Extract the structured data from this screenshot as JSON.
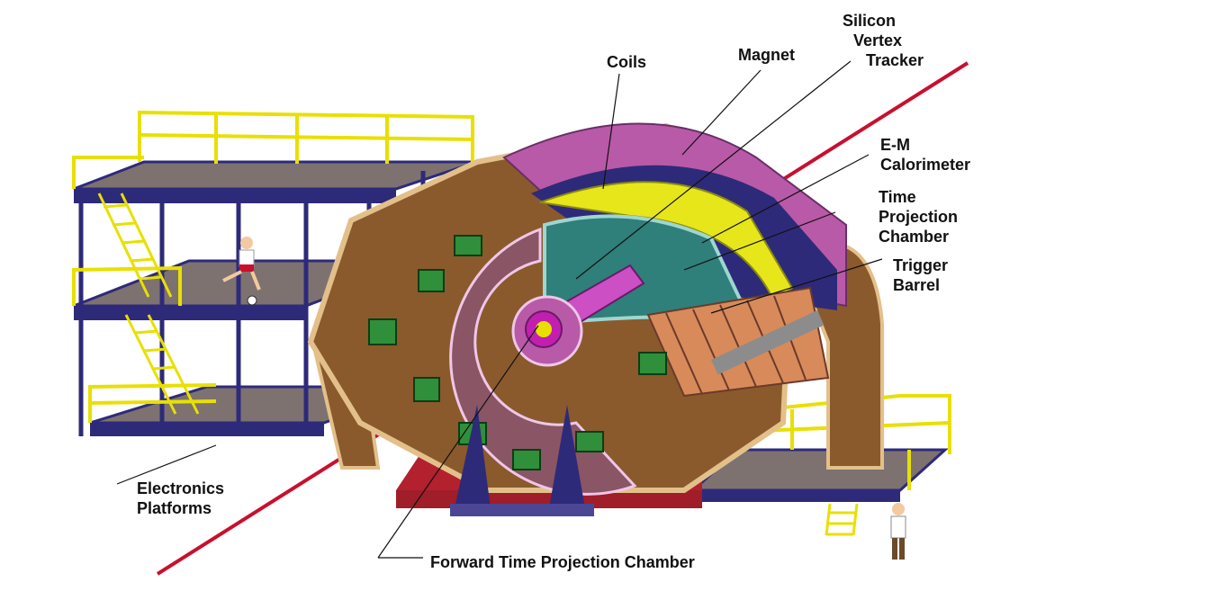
{
  "colors": {
    "beam": "#c8102e",
    "platform_rail": "#e8e000",
    "platform_post": "#2e2a7a",
    "platform_floor": "#7d7270",
    "yoke": "#8a5a2c",
    "yoke_edge": "#e3c08a",
    "calorimeter": "#b85aa8",
    "magnet_ring": "#e6e61a",
    "tpc": "#2f7f7a",
    "end_cap": "#8a5564",
    "support_base": "#a01d2a"
  },
  "labels": {
    "silicon_vertex_tracker": [
      "Silicon",
      "Vertex",
      "Tracker"
    ],
    "magnet": "Magnet",
    "coils": "Coils",
    "em_calorimeter": [
      "E-M",
      "Calorimeter"
    ],
    "time_projection_chamber": [
      "Time",
      "Projection",
      "Chamber"
    ],
    "trigger_barrel": [
      "Trigger",
      "Barrel"
    ],
    "electronics_platforms": [
      "Electronics",
      "Platforms"
    ],
    "forward_tpc": "Forward Time Projection Chamber"
  }
}
